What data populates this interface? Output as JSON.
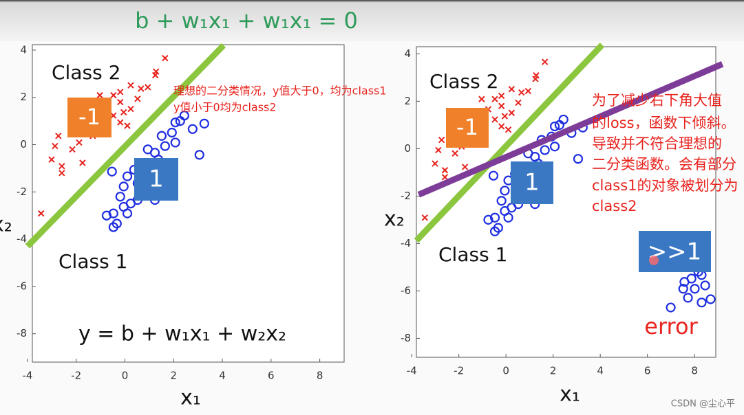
{
  "chart_data": [
    {
      "type": "scatter",
      "xlabel": "x₁",
      "ylabel": "x₂",
      "xlim": [
        -3.8,
        9
      ],
      "ylim": [
        -9.2,
        4.23
      ],
      "xticks": [
        -4,
        -2,
        0,
        2,
        4,
        6,
        8
      ],
      "yticks": [
        -8,
        -6,
        -4,
        -2,
        0,
        2,
        4
      ],
      "series": [
        {
          "marker": "x",
          "color": "#e8231e",
          "x": [
            1.65,
            1.28,
            1.25,
            0.24,
            0.66,
            0.94,
            -0.19,
            -0.47,
            -1.03,
            -0.19,
            -0.75,
            0.24,
            -0.05,
            -0.47,
            -0.19,
            0.1,
            -0.89,
            -1.32,
            -2.16,
            -1.88,
            -2.73,
            -2.16,
            -2.87,
            -3.01,
            -1.74,
            -2.59,
            -2.59,
            -3.44,
            0.52,
            -1.46
          ],
          "values": [
            3.66,
            3.09,
            2.94,
            2.51,
            2.37,
            2.43,
            2.23,
            2.09,
            2.09,
            1.8,
            1.66,
            1.51,
            1.37,
            1.23,
            0.94,
            0.8,
            0.8,
            0.37,
            0.51,
            0.09,
            0.37,
            -0.2,
            -0.06,
            -0.63,
            -0.77,
            -0.91,
            -1.2,
            -2.91,
            1.94,
            1.09
          ]
        },
        {
          "marker": "o",
          "color": "#1f2ee0",
          "x": [
            3.26,
            2.78,
            2.27,
            1.93,
            2.07,
            1.65,
            1.51,
            1.23,
            0.94,
            1.37,
            0.8,
            1.79,
            1.08,
            0.38,
            0.1,
            0.52,
            -0.05,
            -0.19,
            0.24,
            -0.05,
            -0.47,
            -0.75,
            0.1,
            -0.33,
            -0.47,
            1.23,
            0.52,
            -0.53,
            3.06,
            0.8,
            2.44,
            2.07
          ],
          "values": [
            0.89,
            0.66,
            1.0,
            0.51,
            0.09,
            -0.06,
            0.37,
            -0.34,
            -0.2,
            -0.63,
            -0.77,
            -1.06,
            -1.2,
            -1.06,
            -1.34,
            -1.63,
            -1.77,
            -2.2,
            -2.49,
            -2.63,
            -2.91,
            -3.0,
            -2.91,
            -3.34,
            -3.49,
            -2.34,
            -2.34,
            -1.14,
            -0.43,
            -1.91,
            1.23,
            0.94
          ]
        },
        {
          "marker": "line",
          "color": "#8cc63f",
          "x": [
            -4,
            4.05
          ],
          "values": [
            -4.3,
            4.2
          ]
        }
      ],
      "annotations": [
        {
          "text": "b + w₁x₁ + w₁x₁ = 0",
          "color": "#2e9b5a"
        },
        {
          "text": "Class 2",
          "color": "#111111"
        },
        {
          "text": "-1",
          "color": "#ffffff",
          "box": "#f0812a"
        },
        {
          "text": "1",
          "color": "#ffffff",
          "box": "#3a78c3"
        },
        {
          "text": "Class 1",
          "color": "#111111"
        },
        {
          "text": "y = b + w₁x₁ + w₂x₂",
          "color": "#111111"
        },
        {
          "text": "理想的二分类情况，y值大于0，均为class1",
          "color": "#e8231e"
        },
        {
          "text": "y值小于0均为class2",
          "color": "#e8231e"
        }
      ]
    },
    {
      "type": "scatter",
      "xlabel": "x₁",
      "ylabel": "x₂",
      "xlim": [
        -3.8,
        8.9
      ],
      "ylim": [
        -8.8,
        4.3
      ],
      "xticks": [
        -4,
        -2,
        0,
        2,
        4,
        6,
        8
      ],
      "yticks": [
        -8,
        -6,
        -4,
        -2,
        0,
        2,
        4
      ],
      "series": [
        {
          "marker": "x",
          "color": "#e8231e",
          "x": [
            1.65,
            1.28,
            1.25,
            0.24,
            0.66,
            0.94,
            -0.19,
            -0.47,
            -1.03,
            -0.19,
            -0.75,
            0.24,
            -0.05,
            -0.47,
            -0.19,
            0.1,
            -0.89,
            -1.32,
            -2.16,
            -1.88,
            -2.73,
            -2.16,
            -2.87,
            -3.01,
            -1.74,
            -2.59,
            -2.59,
            -3.44,
            0.52,
            -1.46
          ],
          "values": [
            3.66,
            3.09,
            2.94,
            2.51,
            2.37,
            2.43,
            2.23,
            2.09,
            2.09,
            1.8,
            1.66,
            1.51,
            1.37,
            1.23,
            0.94,
            0.8,
            0.8,
            0.37,
            0.51,
            0.09,
            0.37,
            -0.2,
            -0.06,
            -0.63,
            -0.77,
            -0.91,
            -1.2,
            -2.91,
            1.94,
            1.09
          ]
        },
        {
          "marker": "o",
          "color": "#1f2ee0",
          "x": [
            3.26,
            2.78,
            2.27,
            1.93,
            2.07,
            1.65,
            1.51,
            1.23,
            0.94,
            1.37,
            0.8,
            1.79,
            1.08,
            0.38,
            0.1,
            0.52,
            -0.05,
            -0.19,
            0.24,
            -0.05,
            -0.47,
            -0.75,
            0.1,
            -0.33,
            -0.47,
            1.23,
            0.52,
            -0.53,
            3.06,
            0.8,
            2.44,
            2.07,
            7.57,
            7.87,
            8.3,
            7.52,
            8.01,
            8.45,
            7.72,
            8.3,
            8.68,
            6.99,
            8.16
          ],
          "values": [
            0.89,
            0.66,
            1.0,
            0.51,
            0.09,
            -0.06,
            0.37,
            -0.34,
            -0.2,
            -0.63,
            -0.77,
            -1.06,
            -1.2,
            -1.06,
            -1.34,
            -1.63,
            -1.77,
            -2.2,
            -2.49,
            -2.63,
            -2.91,
            -3.0,
            -2.91,
            -3.34,
            -3.49,
            -2.34,
            -2.34,
            -1.14,
            -0.43,
            -1.91,
            1.23,
            0.94,
            -5.62,
            -5.48,
            -5.33,
            -5.91,
            -5.91,
            -5.77,
            -6.29,
            -6.49,
            -6.35,
            -6.7,
            -5.19
          ]
        },
        {
          "marker": "line",
          "color": "#8cc63f",
          "x": [
            -3.8,
            4.08
          ],
          "values": [
            -3.88,
            4.38
          ]
        },
        {
          "marker": "line",
          "color": "#7d3c98",
          "x": [
            -3.7,
            9.18
          ],
          "values": [
            -1.94,
            3.57
          ]
        }
      ],
      "annotations": [
        {
          "text": "Class 2",
          "color": "#111111"
        },
        {
          "text": "-1",
          "color": "#ffffff",
          "box": "#f0812a"
        },
        {
          "text": "1",
          "color": "#ffffff",
          "box": "#3a78c3"
        },
        {
          "text": "Class 1",
          "color": "#111111"
        },
        {
          "text": ">>1",
          "color": "#ffffff",
          "box": "#3a78c3"
        },
        {
          "text": "error",
          "color": "#e8231e"
        },
        {
          "text": "为了减少右下角大值",
          "color": "#e8231e"
        },
        {
          "text": "的loss，函数下倾斜。",
          "color": "#e8231e"
        },
        {
          "text": "导致并不符合理想的",
          "color": "#e8231e"
        },
        {
          "text": "二分类函数。会有部分",
          "color": "#e8231e"
        },
        {
          "text": "class1的对象被划分为",
          "color": "#e8231e"
        },
        {
          "text": "class2",
          "color": "#e8231e"
        }
      ]
    }
  ],
  "watermark": "CSDN @尘心平"
}
